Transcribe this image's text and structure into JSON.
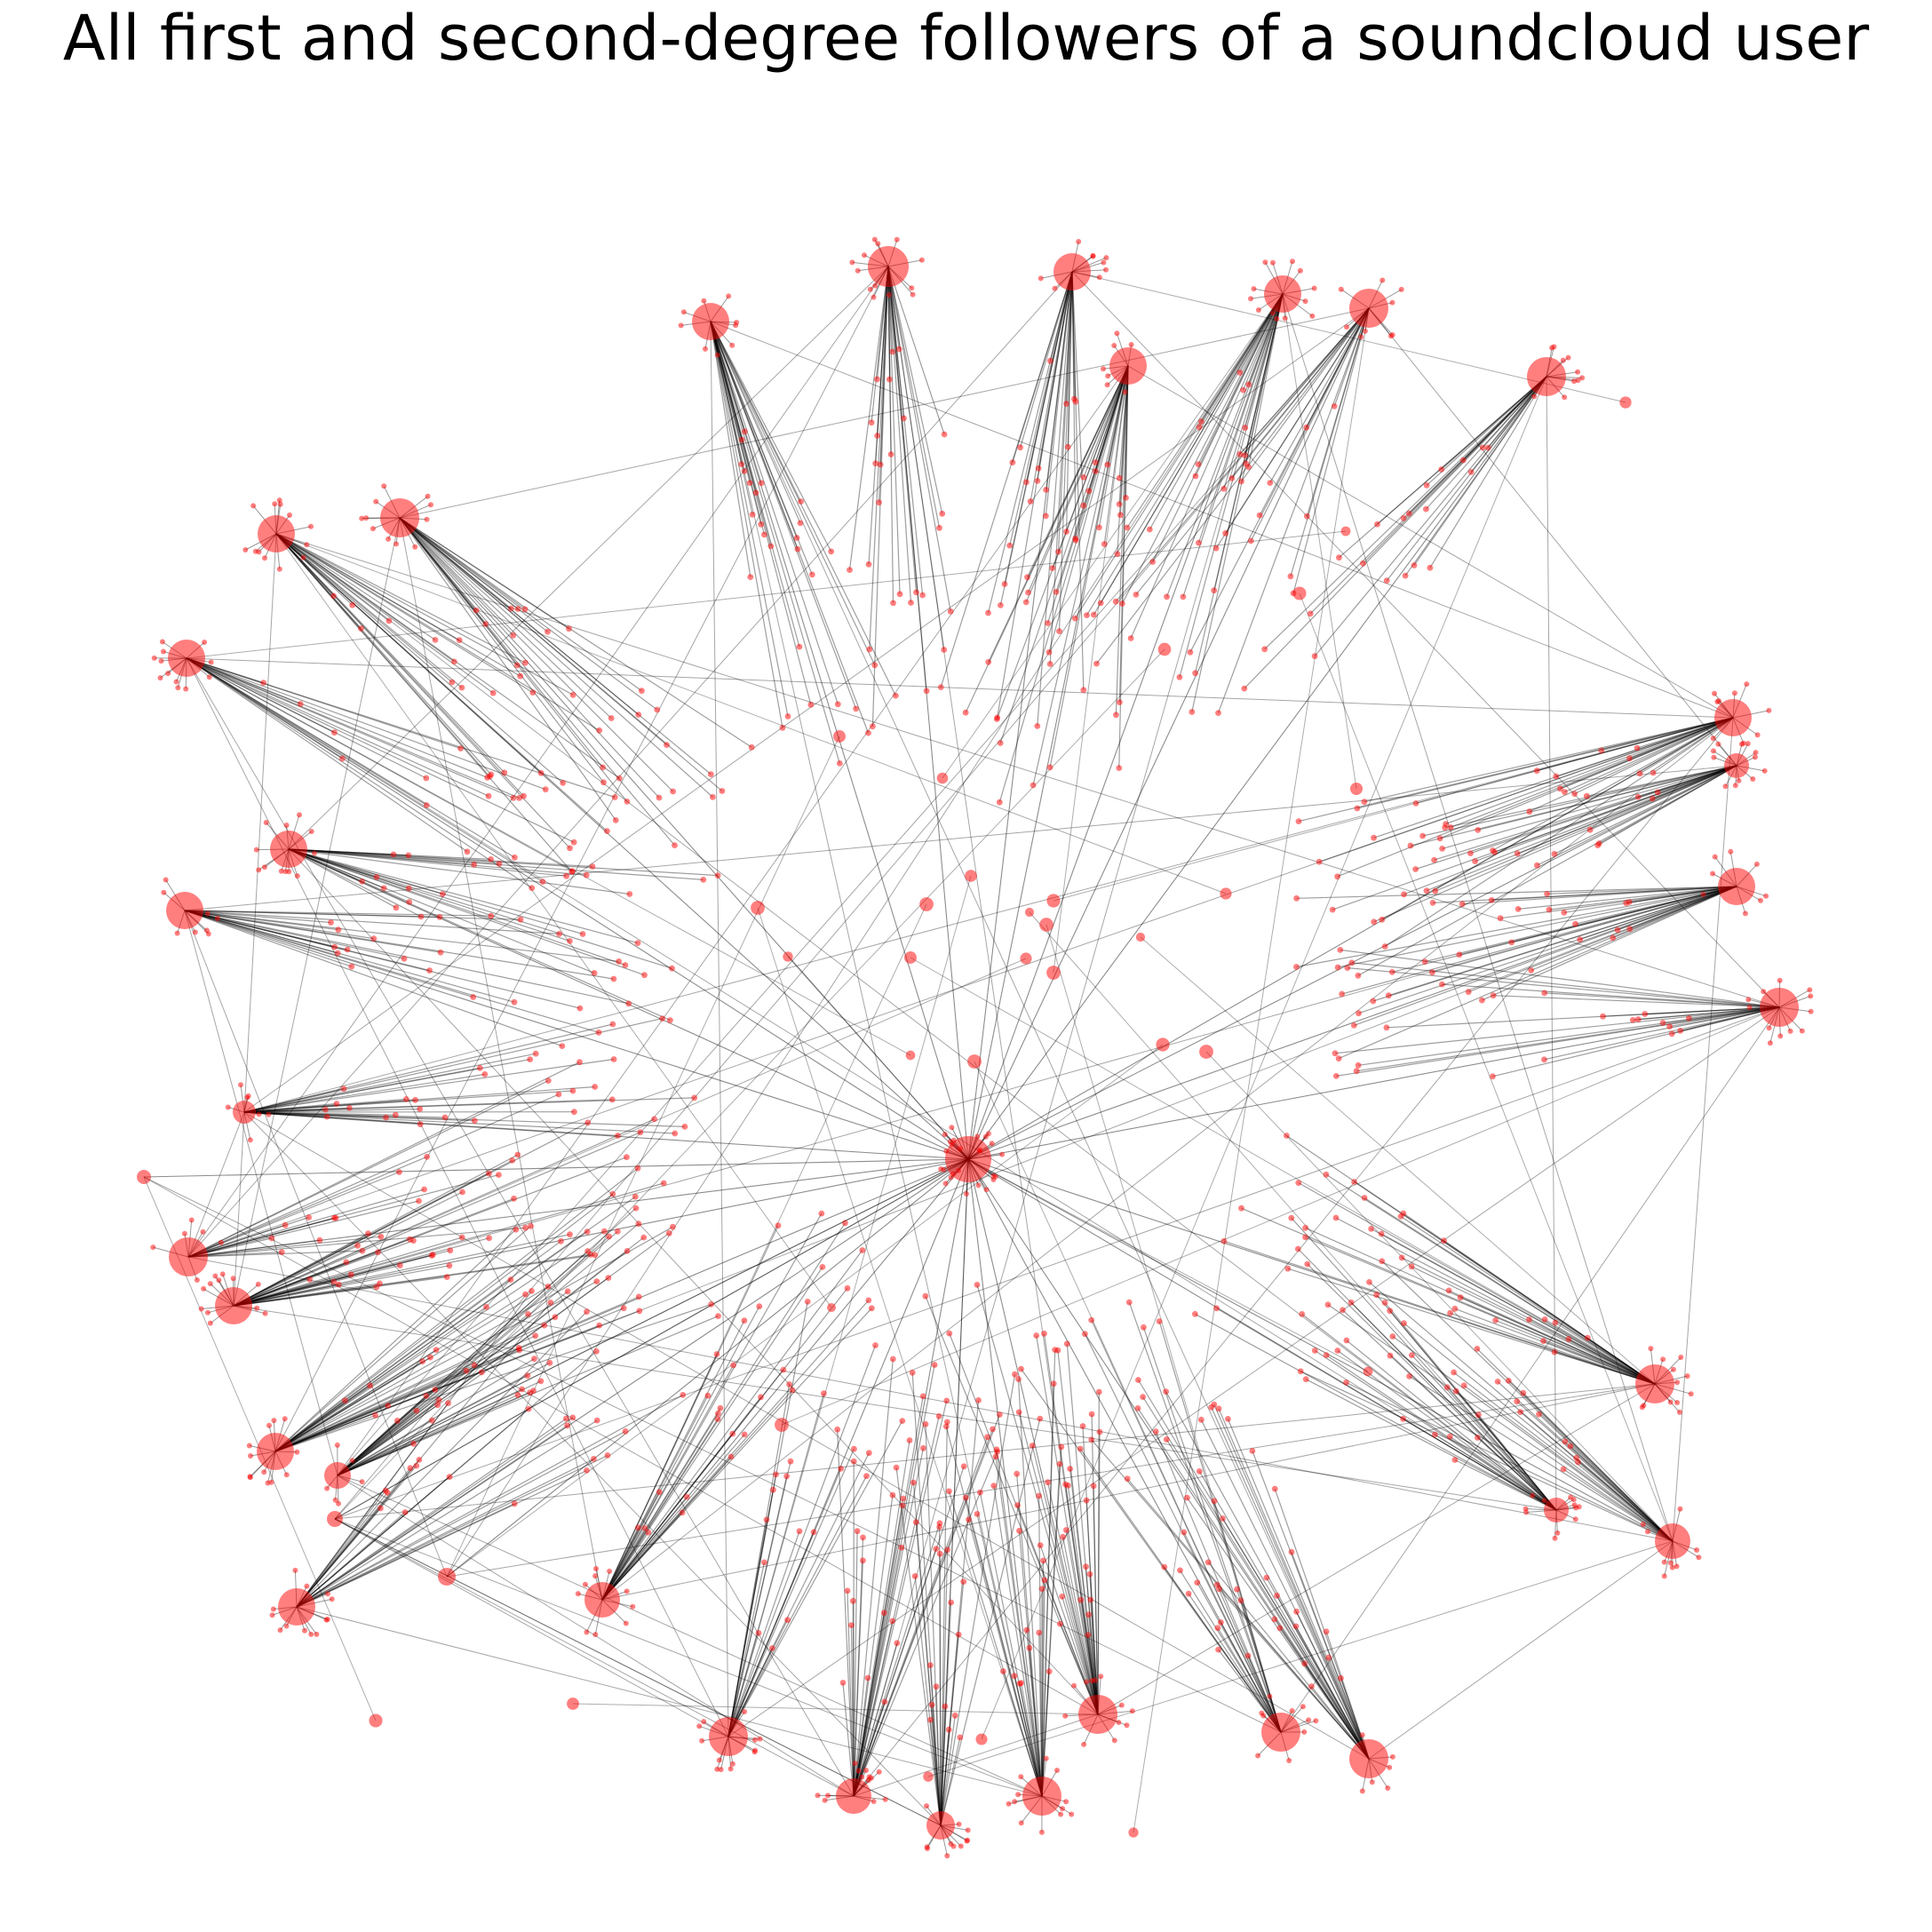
{
  "title": "All first and second-degree followers of a soundcloud user",
  "style": {
    "node_color": "#ff0000",
    "node_opacity": 0.5,
    "edge_color": "#000000",
    "edge_opacity": 0.35
  }
}
